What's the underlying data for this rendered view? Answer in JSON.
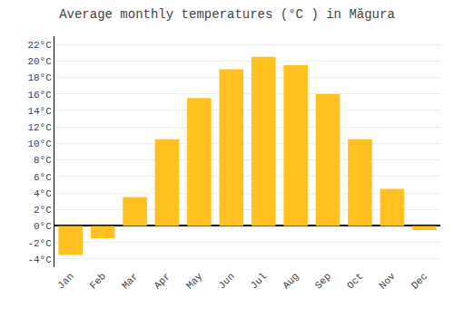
{
  "chart_data": {
    "type": "bar",
    "title": "Average monthly temperatures (°C ) in Măgura",
    "categories": [
      "Jan",
      "Feb",
      "Mar",
      "Apr",
      "May",
      "Jun",
      "Jul",
      "Aug",
      "Sep",
      "Oct",
      "Nov",
      "Dec"
    ],
    "values": [
      -3.5,
      -1.5,
      3.5,
      10.5,
      15.5,
      19.0,
      20.5,
      19.5,
      16.0,
      10.5,
      4.5,
      -0.5
    ],
    "color": "#FFC020",
    "ylim": [
      -5,
      23
    ],
    "yticks": [
      {
        "value": -4,
        "label": "-4°C"
      },
      {
        "value": -2,
        "label": "-2°C"
      },
      {
        "value": 0,
        "label": "0°C"
      },
      {
        "value": 2,
        "label": "2°C"
      },
      {
        "value": 4,
        "label": "4°C"
      },
      {
        "value": 6,
        "label": "6°C"
      },
      {
        "value": 8,
        "label": "8°C"
      },
      {
        "value": 10,
        "label": "10°C"
      },
      {
        "value": 12,
        "label": "12°C"
      },
      {
        "value": 14,
        "label": "14°C"
      },
      {
        "value": 16,
        "label": "16°C"
      },
      {
        "value": 18,
        "label": "18°C"
      },
      {
        "value": 20,
        "label": "20°C"
      },
      {
        "value": 22,
        "label": "22°C"
      }
    ],
    "grid": true
  }
}
